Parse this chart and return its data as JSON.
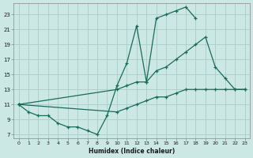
{
  "xlabel": "Humidex (Indice chaleur)",
  "bg_color": "#cce8e4",
  "grid_color": "#aaccca",
  "line_color": "#1a6b5a",
  "xlim": [
    -0.5,
    23.5
  ],
  "ylim": [
    6.5,
    24.5
  ],
  "xticks": [
    0,
    1,
    2,
    3,
    4,
    5,
    6,
    7,
    8,
    9,
    10,
    11,
    12,
    13,
    14,
    15,
    16,
    17,
    18,
    19,
    20,
    21,
    22,
    23
  ],
  "yticks": [
    7,
    9,
    11,
    13,
    15,
    17,
    19,
    21,
    23
  ],
  "line1_x": [
    0,
    1,
    2,
    3,
    4,
    5,
    6,
    7,
    8,
    9,
    10,
    11,
    12,
    13,
    14,
    15,
    16,
    17,
    18
  ],
  "line1_y": [
    11,
    10,
    9.5,
    9.5,
    8.5,
    8,
    8,
    7.5,
    7,
    9.5,
    13.5,
    16.5,
    21.5,
    14,
    22.5,
    23,
    23.5,
    24,
    22.5
  ],
  "line2_x": [
    0,
    10,
    11,
    12,
    13,
    14,
    15,
    16,
    17,
    18,
    19,
    20,
    21,
    22,
    23
  ],
  "line2_y": [
    11,
    13,
    13.5,
    14,
    14,
    15.5,
    16,
    17,
    18,
    19,
    20,
    16,
    14.5,
    13,
    13
  ],
  "line3_x": [
    0,
    10,
    11,
    12,
    13,
    14,
    15,
    16,
    17,
    18,
    19,
    20,
    21,
    22,
    23
  ],
  "line3_y": [
    11,
    10,
    10.5,
    11,
    11.5,
    12,
    12,
    12.5,
    13,
    13,
    13,
    13,
    13,
    13,
    13
  ]
}
